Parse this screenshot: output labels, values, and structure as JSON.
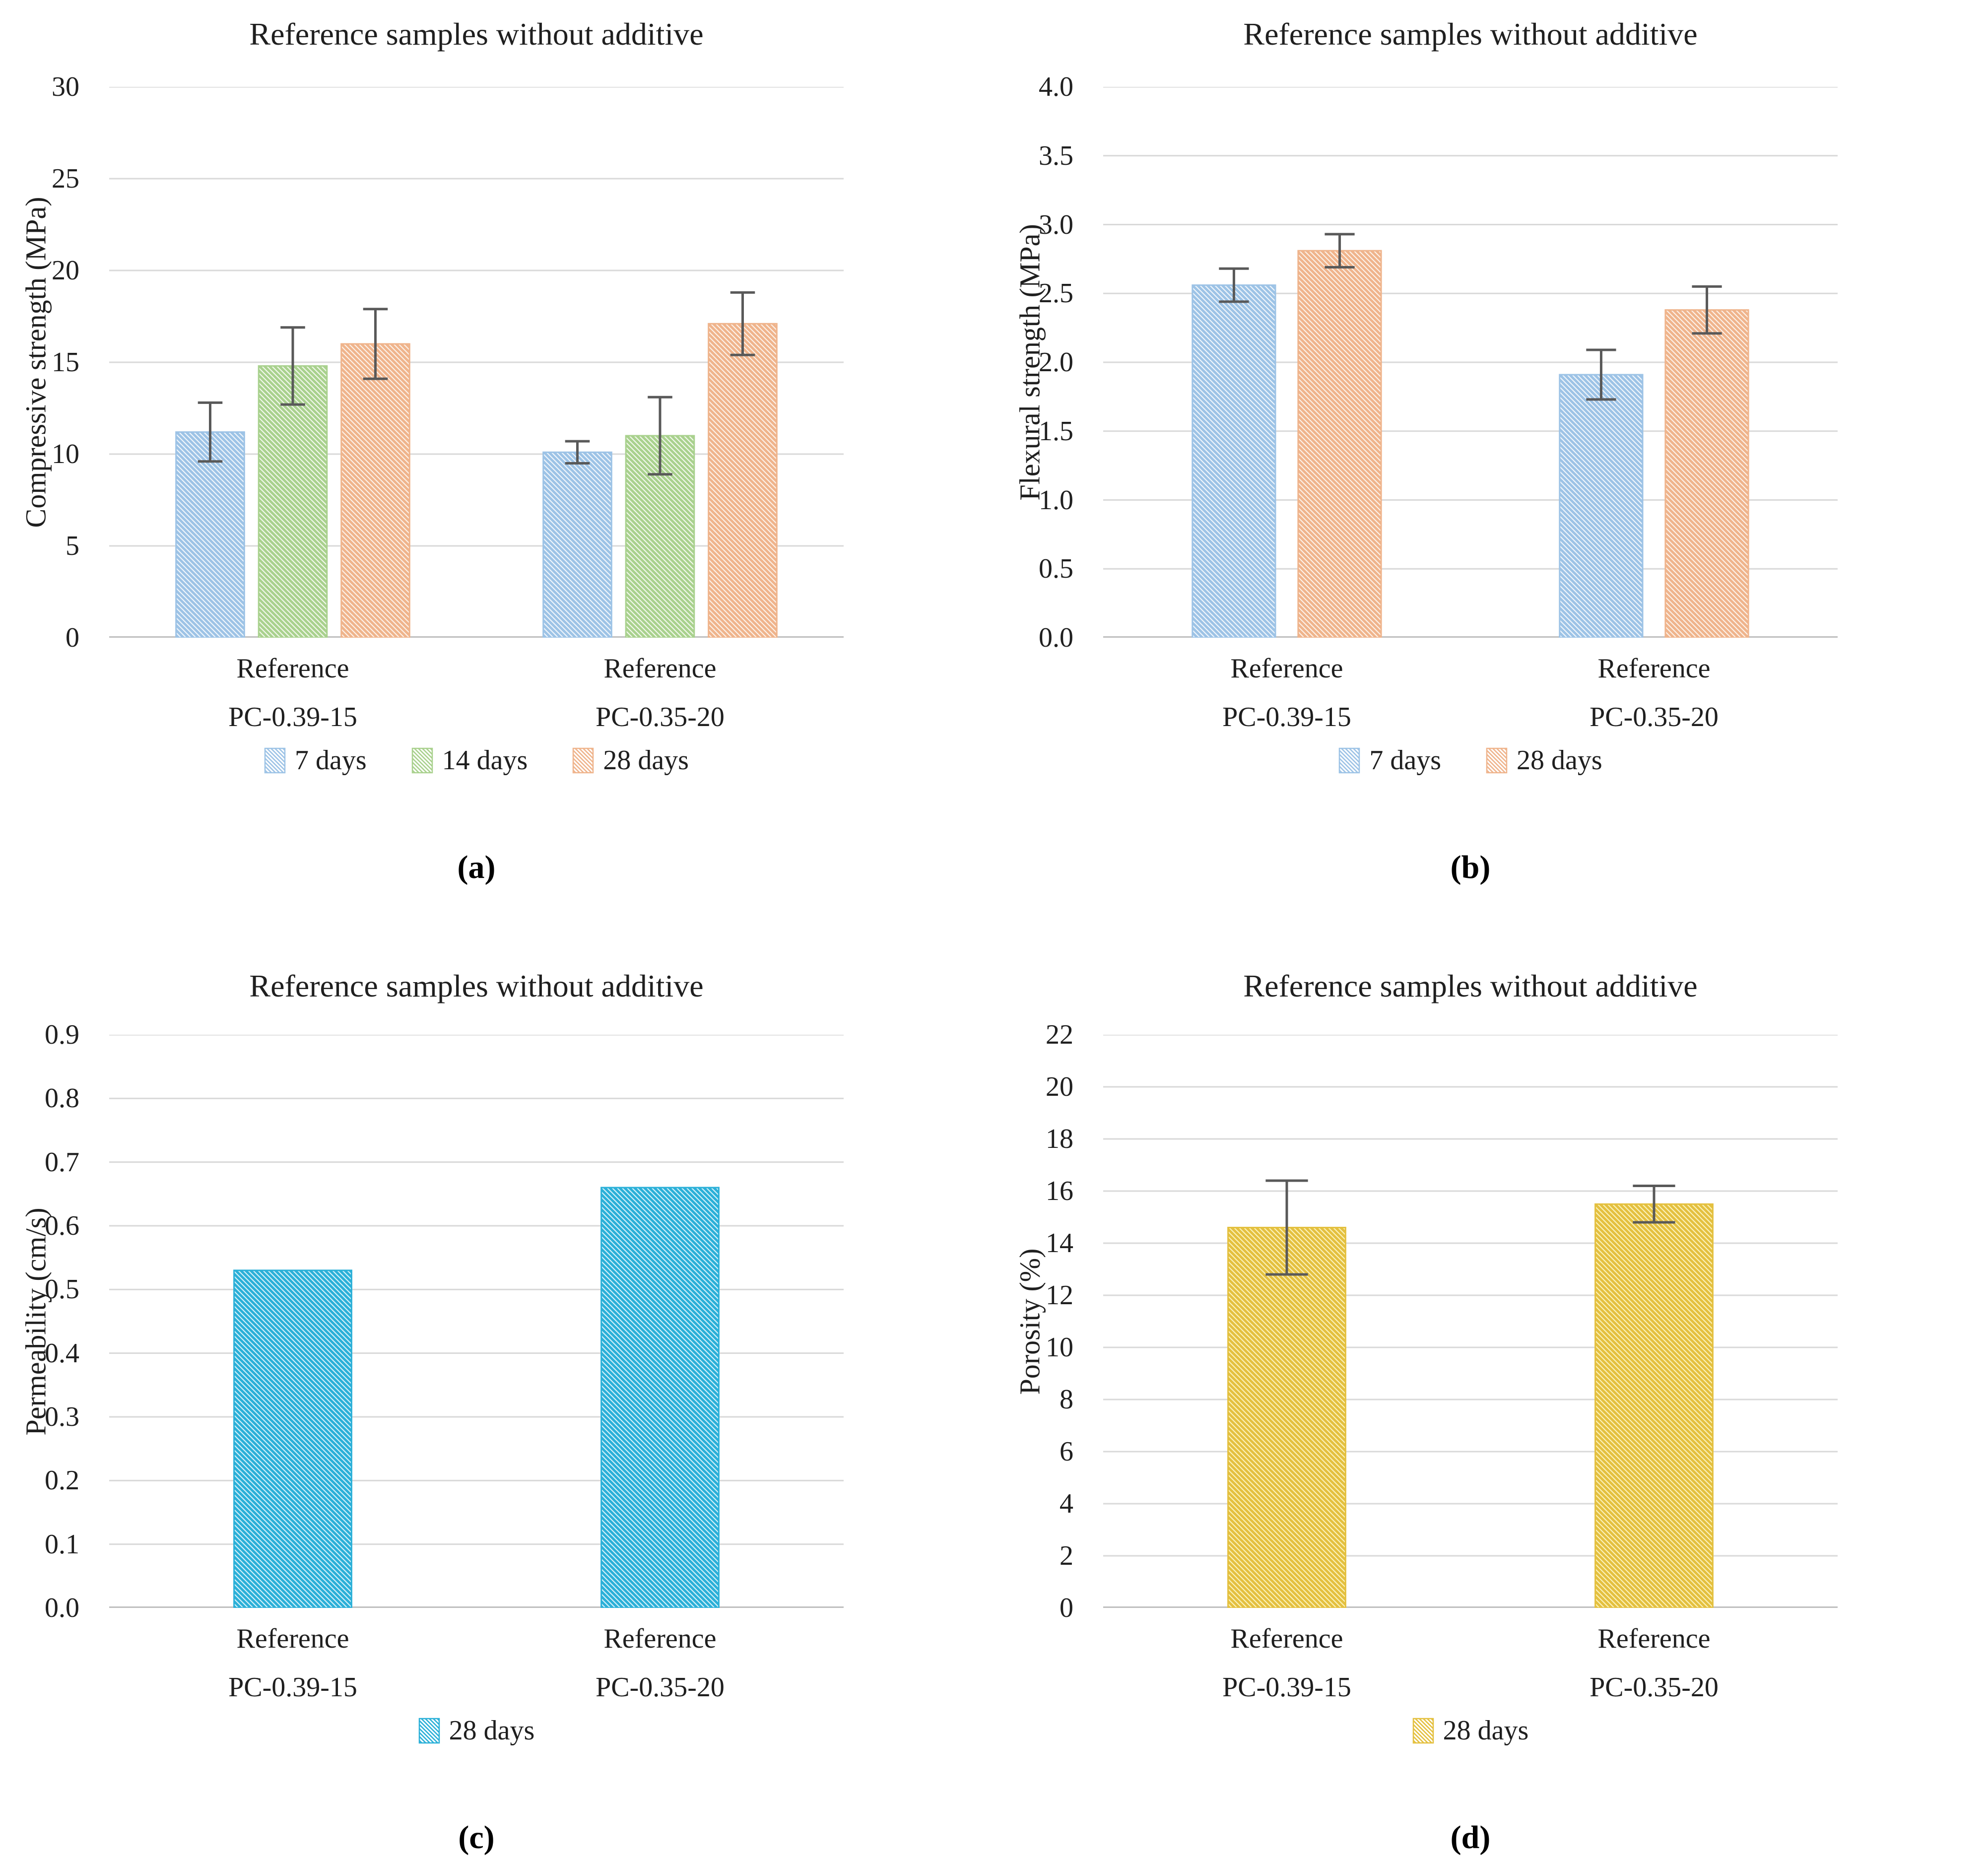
{
  "colors": {
    "background": "#FFFFFF",
    "gridline": "#D9D9D9",
    "axis_line": "#BFBFBF",
    "error_bar": "#595959",
    "text": "#1F1F1F"
  },
  "chart_data": [
    {
      "panel_label": "(a)",
      "type": "bar",
      "title": "Reference samples without additive",
      "ylabel": "Compressive strength (MPa)",
      "ylim": [
        0,
        30
      ],
      "ytick_step": 5,
      "ytick_decimals": 0,
      "ytick_labels": [
        "0",
        "5",
        "10",
        "15",
        "20",
        "25",
        "30"
      ],
      "grid": true,
      "legend_position": "bottom",
      "categories": [
        [
          "Reference",
          "PC-0.39-15"
        ],
        [
          "Reference",
          "PC-0.35-20"
        ]
      ],
      "series": [
        {
          "name": "7 days",
          "values": [
            11.2,
            10.1
          ],
          "errors": [
            1.6,
            0.6
          ],
          "stripe_color": "#9DC3E6",
          "fill_bg": "#F2F7FC"
        },
        {
          "name": "14 days",
          "values": [
            14.8,
            11.0
          ],
          "errors": [
            2.1,
            2.1
          ],
          "stripe_color": "#A9D18E",
          "fill_bg": "#F4F9EF"
        },
        {
          "name": "28 days",
          "values": [
            16.0,
            17.1
          ],
          "errors": [
            1.9,
            1.7
          ],
          "stripe_color": "#EFB48C",
          "fill_bg": "#FDF3EB"
        }
      ]
    },
    {
      "panel_label": "(b)",
      "type": "bar",
      "title": "Reference samples without additive",
      "ylabel": "Flexural strength (MPa)",
      "ylim": [
        0,
        4.0
      ],
      "ytick_step": 0.5,
      "ytick_decimals": 1,
      "ytick_labels": [
        "0.0",
        "0.5",
        "1.0",
        "1.5",
        "2.0",
        "2.5",
        "3.0",
        "3.5",
        "4.0"
      ],
      "grid": true,
      "legend_position": "bottom",
      "categories": [
        [
          "Reference",
          "PC-0.39-15"
        ],
        [
          "Reference",
          "PC-0.35-20"
        ]
      ],
      "series": [
        {
          "name": "7 days",
          "values": [
            2.56,
            1.91
          ],
          "errors": [
            0.12,
            0.18
          ],
          "stripe_color": "#9DC3E6",
          "fill_bg": "#F2F7FC"
        },
        {
          "name": "28 days",
          "values": [
            2.81,
            2.38
          ],
          "errors": [
            0.12,
            0.17
          ],
          "stripe_color": "#EFB48C",
          "fill_bg": "#FDF3EB"
        }
      ]
    },
    {
      "panel_label": "(c)",
      "type": "bar",
      "title": "Reference samples without additive",
      "ylabel": "Permeability (cm/s)",
      "ylim": [
        0,
        0.9
      ],
      "ytick_step": 0.1,
      "ytick_decimals": 1,
      "ytick_labels": [
        "0.0",
        "0.1",
        "0.2",
        "0.3",
        "0.4",
        "0.5",
        "0.6",
        "0.7",
        "0.8",
        "0.9"
      ],
      "grid": true,
      "legend_position": "bottom",
      "categories": [
        [
          "Reference",
          "PC-0.39-15"
        ],
        [
          "Reference",
          "PC-0.35-20"
        ]
      ],
      "series": [
        {
          "name": "28 days",
          "values": [
            0.53,
            0.66
          ],
          "errors": null,
          "stripe_color": "#2BB0D8",
          "fill_bg": "#D9F2FA"
        }
      ]
    },
    {
      "panel_label": "(d)",
      "type": "bar",
      "title": "Reference samples without additive",
      "ylabel": "Porosity (%)",
      "ylim": [
        0,
        22
      ],
      "ytick_step": 2,
      "ytick_decimals": 0,
      "ytick_labels": [
        "0",
        "2",
        "4",
        "6",
        "8",
        "10",
        "12",
        "14",
        "16",
        "18",
        "20",
        "22"
      ],
      "grid": true,
      "legend_position": "bottom",
      "categories": [
        [
          "Reference",
          "PC-0.39-15"
        ],
        [
          "Reference",
          "PC-0.35-20"
        ]
      ],
      "series": [
        {
          "name": "28 days",
          "values": [
            14.6,
            15.5
          ],
          "errors": [
            1.8,
            0.7
          ],
          "stripe_color": "#E4C03F",
          "fill_bg": "#FBF3BE"
        }
      ]
    }
  ]
}
